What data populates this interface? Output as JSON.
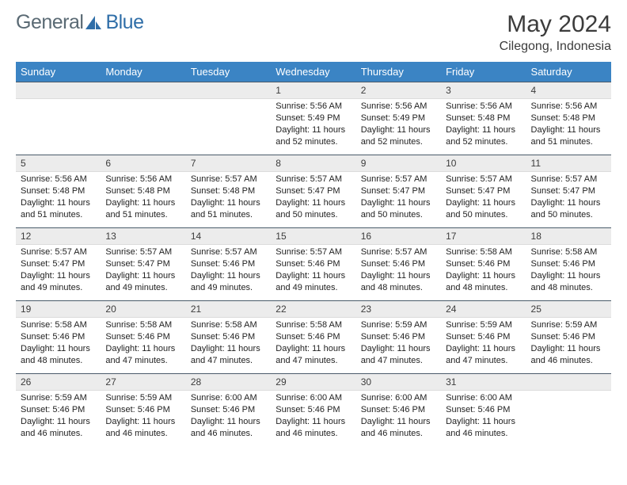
{
  "brand": {
    "part1": "General",
    "part2": "Blue"
  },
  "title": "May 2024",
  "location": "Cilegong, Indonesia",
  "colors": {
    "header_bg": "#3b84c4",
    "header_text": "#ffffff",
    "daynum_bg": "#ececec",
    "daynum_border_top": "#4a5b6a",
    "logo_gray": "#5a6a74",
    "logo_blue": "#2f6ea8"
  },
  "day_headers": [
    "Sunday",
    "Monday",
    "Tuesday",
    "Wednesday",
    "Thursday",
    "Friday",
    "Saturday"
  ],
  "weeks": [
    [
      {
        "n": "",
        "sr": "",
        "ss": "",
        "dl": ""
      },
      {
        "n": "",
        "sr": "",
        "ss": "",
        "dl": ""
      },
      {
        "n": "",
        "sr": "",
        "ss": "",
        "dl": ""
      },
      {
        "n": "1",
        "sr": "5:56 AM",
        "ss": "5:49 PM",
        "dl": "11 hours and 52 minutes."
      },
      {
        "n": "2",
        "sr": "5:56 AM",
        "ss": "5:49 PM",
        "dl": "11 hours and 52 minutes."
      },
      {
        "n": "3",
        "sr": "5:56 AM",
        "ss": "5:48 PM",
        "dl": "11 hours and 52 minutes."
      },
      {
        "n": "4",
        "sr": "5:56 AM",
        "ss": "5:48 PM",
        "dl": "11 hours and 51 minutes."
      }
    ],
    [
      {
        "n": "5",
        "sr": "5:56 AM",
        "ss": "5:48 PM",
        "dl": "11 hours and 51 minutes."
      },
      {
        "n": "6",
        "sr": "5:56 AM",
        "ss": "5:48 PM",
        "dl": "11 hours and 51 minutes."
      },
      {
        "n": "7",
        "sr": "5:57 AM",
        "ss": "5:48 PM",
        "dl": "11 hours and 51 minutes."
      },
      {
        "n": "8",
        "sr": "5:57 AM",
        "ss": "5:47 PM",
        "dl": "11 hours and 50 minutes."
      },
      {
        "n": "9",
        "sr": "5:57 AM",
        "ss": "5:47 PM",
        "dl": "11 hours and 50 minutes."
      },
      {
        "n": "10",
        "sr": "5:57 AM",
        "ss": "5:47 PM",
        "dl": "11 hours and 50 minutes."
      },
      {
        "n": "11",
        "sr": "5:57 AM",
        "ss": "5:47 PM",
        "dl": "11 hours and 50 minutes."
      }
    ],
    [
      {
        "n": "12",
        "sr": "5:57 AM",
        "ss": "5:47 PM",
        "dl": "11 hours and 49 minutes."
      },
      {
        "n": "13",
        "sr": "5:57 AM",
        "ss": "5:47 PM",
        "dl": "11 hours and 49 minutes."
      },
      {
        "n": "14",
        "sr": "5:57 AM",
        "ss": "5:46 PM",
        "dl": "11 hours and 49 minutes."
      },
      {
        "n": "15",
        "sr": "5:57 AM",
        "ss": "5:46 PM",
        "dl": "11 hours and 49 minutes."
      },
      {
        "n": "16",
        "sr": "5:57 AM",
        "ss": "5:46 PM",
        "dl": "11 hours and 48 minutes."
      },
      {
        "n": "17",
        "sr": "5:58 AM",
        "ss": "5:46 PM",
        "dl": "11 hours and 48 minutes."
      },
      {
        "n": "18",
        "sr": "5:58 AM",
        "ss": "5:46 PM",
        "dl": "11 hours and 48 minutes."
      }
    ],
    [
      {
        "n": "19",
        "sr": "5:58 AM",
        "ss": "5:46 PM",
        "dl": "11 hours and 48 minutes."
      },
      {
        "n": "20",
        "sr": "5:58 AM",
        "ss": "5:46 PM",
        "dl": "11 hours and 47 minutes."
      },
      {
        "n": "21",
        "sr": "5:58 AM",
        "ss": "5:46 PM",
        "dl": "11 hours and 47 minutes."
      },
      {
        "n": "22",
        "sr": "5:58 AM",
        "ss": "5:46 PM",
        "dl": "11 hours and 47 minutes."
      },
      {
        "n": "23",
        "sr": "5:59 AM",
        "ss": "5:46 PM",
        "dl": "11 hours and 47 minutes."
      },
      {
        "n": "24",
        "sr": "5:59 AM",
        "ss": "5:46 PM",
        "dl": "11 hours and 47 minutes."
      },
      {
        "n": "25",
        "sr": "5:59 AM",
        "ss": "5:46 PM",
        "dl": "11 hours and 46 minutes."
      }
    ],
    [
      {
        "n": "26",
        "sr": "5:59 AM",
        "ss": "5:46 PM",
        "dl": "11 hours and 46 minutes."
      },
      {
        "n": "27",
        "sr": "5:59 AM",
        "ss": "5:46 PM",
        "dl": "11 hours and 46 minutes."
      },
      {
        "n": "28",
        "sr": "6:00 AM",
        "ss": "5:46 PM",
        "dl": "11 hours and 46 minutes."
      },
      {
        "n": "29",
        "sr": "6:00 AM",
        "ss": "5:46 PM",
        "dl": "11 hours and 46 minutes."
      },
      {
        "n": "30",
        "sr": "6:00 AM",
        "ss": "5:46 PM",
        "dl": "11 hours and 46 minutes."
      },
      {
        "n": "31",
        "sr": "6:00 AM",
        "ss": "5:46 PM",
        "dl": "11 hours and 46 minutes."
      },
      {
        "n": "",
        "sr": "",
        "ss": "",
        "dl": ""
      }
    ]
  ],
  "labels": {
    "sunrise": "Sunrise: ",
    "sunset": "Sunset: ",
    "daylight": "Daylight: "
  }
}
